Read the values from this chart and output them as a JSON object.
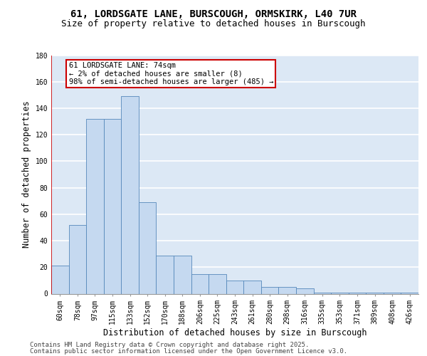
{
  "title_line1": "61, LORDSGATE LANE, BURSCOUGH, ORMSKIRK, L40 7UR",
  "title_line2": "Size of property relative to detached houses in Burscough",
  "xlabel": "Distribution of detached houses by size in Burscough",
  "ylabel": "Number of detached properties",
  "categories": [
    "60sqm",
    "78sqm",
    "97sqm",
    "115sqm",
    "133sqm",
    "152sqm",
    "170sqm",
    "188sqm",
    "206sqm",
    "225sqm",
    "243sqm",
    "261sqm",
    "280sqm",
    "298sqm",
    "316sqm",
    "335sqm",
    "353sqm",
    "371sqm",
    "389sqm",
    "408sqm",
    "426sqm"
  ],
  "bar_values": [
    21,
    52,
    132,
    132,
    149,
    69,
    29,
    29,
    15,
    15,
    10,
    10,
    5,
    5,
    4,
    1,
    1,
    1,
    1,
    1,
    1
  ],
  "bar_color": "#c5d9f0",
  "bar_edge_color": "#5588bb",
  "vline_color": "#cc0000",
  "annotation_text": "61 LORDSGATE LANE: 74sqm\n← 2% of detached houses are smaller (8)\n98% of semi-detached houses are larger (485) →",
  "annotation_box_edgecolor": "#cc0000",
  "ylim": [
    0,
    180
  ],
  "yticks": [
    0,
    20,
    40,
    60,
    80,
    100,
    120,
    140,
    160,
    180
  ],
  "plot_bg_color": "#dce8f5",
  "grid_color": "#ffffff",
  "footer_line1": "Contains HM Land Registry data © Crown copyright and database right 2025.",
  "footer_line2": "Contains public sector information licensed under the Open Government Licence v3.0.",
  "title_fontsize": 10,
  "subtitle_fontsize": 9,
  "axis_label_fontsize": 8.5,
  "tick_fontsize": 7,
  "footer_fontsize": 6.5,
  "annot_fontsize": 7.5
}
